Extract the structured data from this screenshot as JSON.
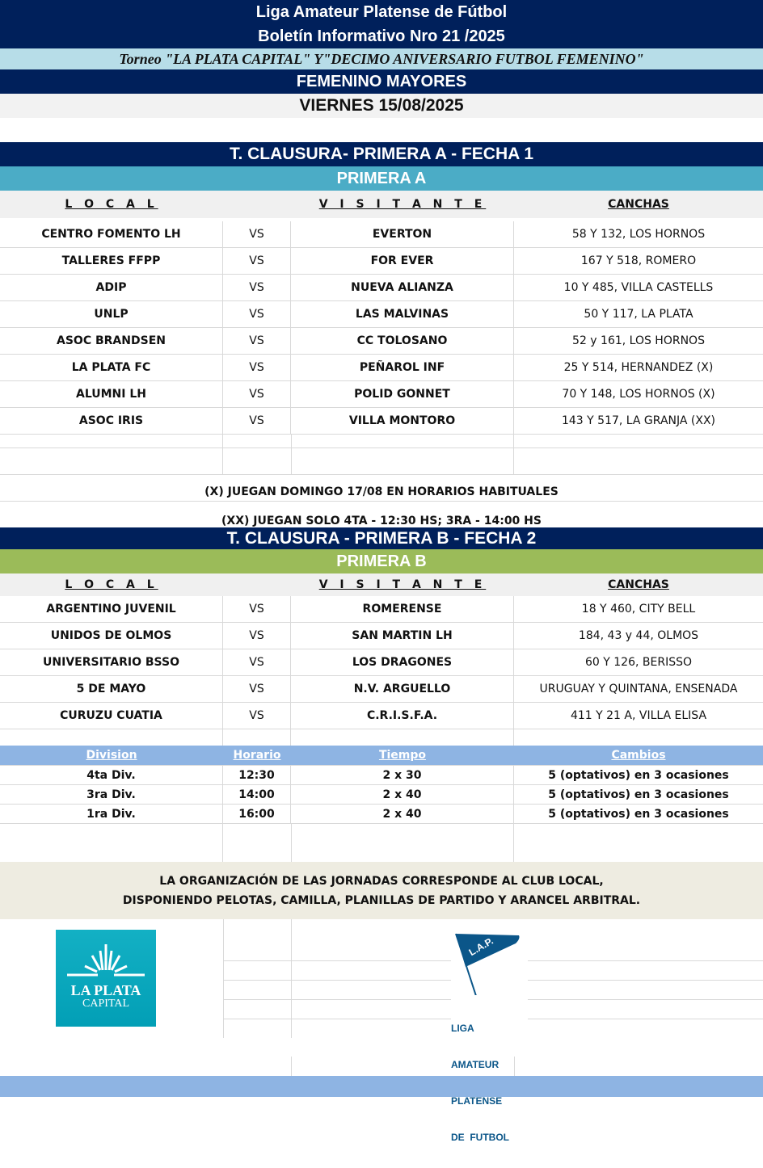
{
  "header": {
    "league": "Liga Amateur Platense de Fútbol",
    "bulletin": "Boletín Informativo Nro 21 /2025",
    "tournament": "Torneo \"LA PLATA CAPITAL\" Y\"DECIMO ANIVERSARIO FUTBOL FEMENINO\"",
    "category": "FEMENINO MAYORES",
    "date": "VIERNES 15/08/2025"
  },
  "columns": {
    "local": "L O C A L",
    "visitante": "V I S I T A N T E",
    "canchas": "CANCHAS"
  },
  "section_a": {
    "title": "T. CLAUSURA- PRIMERA A - FECHA 1",
    "division": "PRIMERA A",
    "matches": [
      [
        "CENTRO FOMENTO LH",
        "VS",
        "EVERTON",
        "58 Y 132, LOS HORNOS"
      ],
      [
        "TALLERES FFPP",
        "VS",
        "FOR EVER",
        "167 Y 518, ROMERO"
      ],
      [
        "ADIP",
        "VS",
        "NUEVA ALIANZA",
        "10 Y 485, VILLA CASTELLS"
      ],
      [
        "UNLP",
        "VS",
        "LAS MALVINAS",
        "50 Y 117, LA PLATA"
      ],
      [
        "ASOC BRANDSEN",
        "VS",
        "CC TOLOSANO",
        "52 y 161, LOS HORNOS"
      ],
      [
        "LA PLATA FC",
        "VS",
        "PEÑAROL INF",
        "25 Y 514, HERNANDEZ (X)"
      ],
      [
        "ALUMNI LH",
        "VS",
        "POLID GONNET",
        "70 Y 148, LOS HORNOS (X)"
      ],
      [
        "ASOC IRIS",
        "VS",
        "VILLA MONTORO",
        "143 Y 517, LA GRANJA (XX)"
      ]
    ],
    "notes": [
      "(X) JUEGAN DOMINGO 17/08 EN HORARIOS HABITUALES",
      "(XX) JUEGAN SOLO 4TA - 12:30 HS; 3RA - 14:00 HS"
    ]
  },
  "section_b": {
    "title": "T. CLAUSURA - PRIMERA B - FECHA 2",
    "division": "PRIMERA B",
    "matches": [
      [
        "ARGENTINO JUVENIL",
        "VS",
        "ROMERENSE",
        "18 Y 460, CITY BELL"
      ],
      [
        "UNIDOS DE OLMOS",
        "VS",
        "SAN MARTIN LH",
        "184, 43 y 44, OLMOS"
      ],
      [
        "UNIVERSITARIO BSSO",
        "VS",
        "LOS DRAGONES",
        "60 Y 126, BERISSO"
      ],
      [
        "5 DE MAYO",
        "VS",
        "N.V. ARGUELLO",
        "URUGUAY Y QUINTANA, ENSENADA"
      ],
      [
        "CURUZU CUATIA",
        "VS",
        "C.R.I.S.F.A.",
        "411 Y 21 A, VILLA ELISA"
      ]
    ]
  },
  "schedule": {
    "headers": [
      "Division",
      "Horario",
      "Tiempo",
      "Cambios"
    ],
    "rows": [
      [
        "4ta Div.",
        "12:30",
        "2 x 30",
        "5 (optativos) en 3 ocasiones"
      ],
      [
        "3ra Div.",
        "14:00",
        "2 x 40",
        "5 (optativos) en 3 ocasiones"
      ],
      [
        "1ra Div.",
        "16:00",
        "2 x 40",
        "5 (optativos) en 3 ocasiones"
      ]
    ]
  },
  "footer": {
    "line1": "LA ORGANIZACIÓN DE LAS JORNADAS CORRESPONDE AL CLUB LOCAL,",
    "line2": "DISPONIENDO PELOTAS, CAMILLA, PLANILLAS DE PARTIDO Y ARANCEL ARBITRAL."
  },
  "logos": {
    "laplata": [
      "LA PLATA",
      "CAPITAL"
    ],
    "lap_flag": "L.A.P.",
    "lap_text": [
      "LIGA",
      "AMATEUR",
      "PLATENSE",
      "DE  FUTBOL"
    ]
  },
  "colors": {
    "navy": "#00205b",
    "light_blue": "#b7dde8",
    "teal": "#4bacc6",
    "green": "#9bbb59",
    "sky": "#8eb4e3",
    "beige": "#eeece1"
  }
}
